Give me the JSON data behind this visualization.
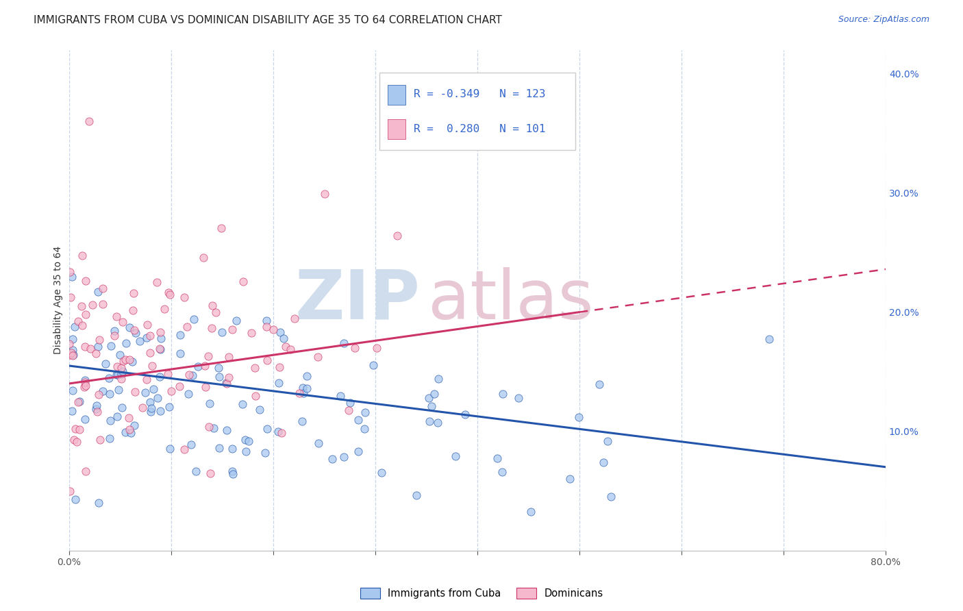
{
  "title": "IMMIGRANTS FROM CUBA VS DOMINICAN DISABILITY AGE 35 TO 64 CORRELATION CHART",
  "source": "Source: ZipAtlas.com",
  "ylabel": "Disability Age 35 to 64",
  "xlim": [
    0.0,
    0.8
  ],
  "ylim": [
    0.0,
    0.42
  ],
  "xtick_positions": [
    0.0,
    0.1,
    0.2,
    0.3,
    0.4,
    0.5,
    0.6,
    0.7,
    0.8
  ],
  "xtick_labels": [
    "0.0%",
    "",
    "",
    "",
    "",
    "",
    "",
    "",
    "80.0%"
  ],
  "yticks_right": [
    0.1,
    0.2,
    0.3,
    0.4
  ],
  "ytick_labels_right": [
    "10.0%",
    "20.0%",
    "30.0%",
    "40.0%"
  ],
  "cuba_color": "#a8c8f0",
  "cuba_color_line": "#2255aa",
  "dominican_color": "#f5b8cc",
  "dominican_color_line": "#cc3366",
  "cuba_R": -0.349,
  "cuba_N": 123,
  "dominican_R": 0.28,
  "dominican_N": 101,
  "legend_R_color": "#3366cc",
  "background_color": "#ffffff",
  "grid_color": "#c8d4e8",
  "title_fontsize": 11,
  "axis_label_fontsize": 10,
  "tick_fontsize": 10,
  "source_fontsize": 9
}
